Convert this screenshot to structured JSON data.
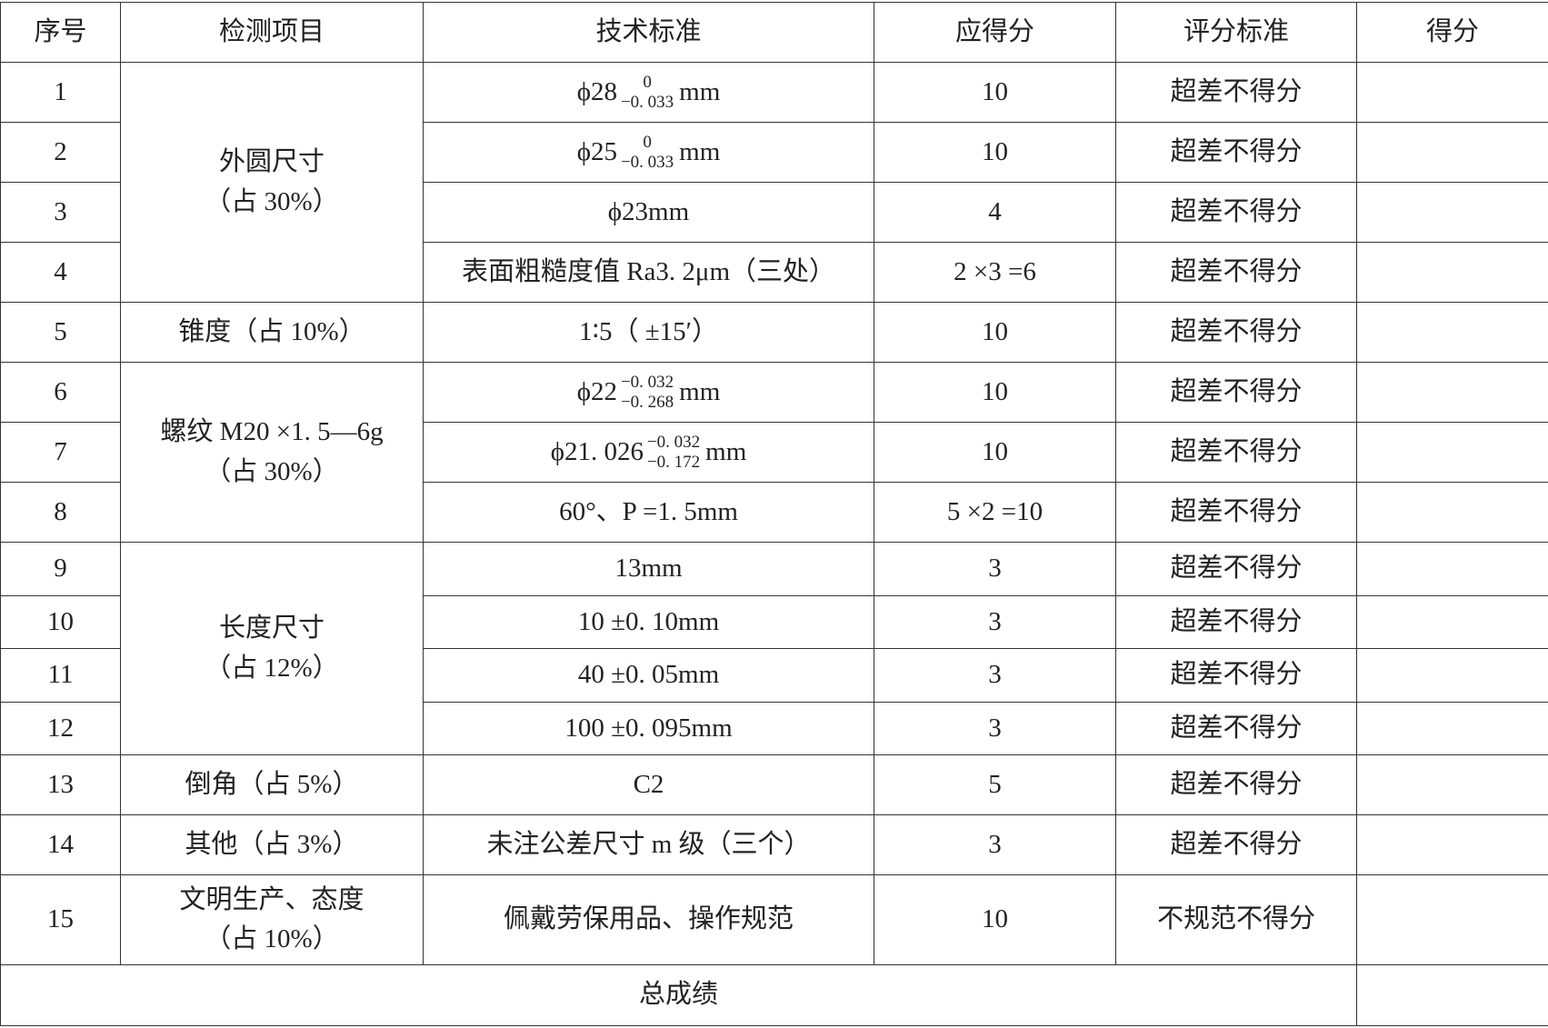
{
  "headers": [
    "序号",
    "检测项目",
    "技术标准",
    "应得分",
    "评分标准",
    "得分"
  ],
  "rows": [
    {
      "no": "1",
      "item": {
        "title": "外圆尺寸",
        "note": "（占 30%）",
        "span": 4
      },
      "tech": {
        "base": "ϕ28",
        "upper": "0",
        "lower": "−0. 033",
        "unit": "mm"
      },
      "points": "10",
      "criteria": "超差不得分",
      "score": ""
    },
    {
      "no": "2",
      "tech": {
        "base": "ϕ25",
        "upper": "0",
        "lower": "−0. 033",
        "unit": "mm"
      },
      "points": "10",
      "criteria": "超差不得分",
      "score": ""
    },
    {
      "no": "3",
      "tech": {
        "text": "ϕ23mm"
      },
      "points": "4",
      "criteria": "超差不得分",
      "score": ""
    },
    {
      "no": "4",
      "tech": {
        "text": "表面粗糙度值 Ra3. 2μm（三处）"
      },
      "points": "2 ×3 =6",
      "criteria": "超差不得分",
      "score": ""
    },
    {
      "no": "5",
      "item": {
        "title": "锥度（占 10%）",
        "span": 1
      },
      "tech": {
        "text": "1∶5（ ±15′）"
      },
      "points": "10",
      "criteria": "超差不得分",
      "score": ""
    },
    {
      "no": "6",
      "item": {
        "title": "螺纹 M20 ×1. 5—6g",
        "note": "（占 30%）",
        "span": 3
      },
      "tech": {
        "base": "ϕ22",
        "upper": "−0. 032",
        "lower": "−0. 268",
        "unit": "mm"
      },
      "points": "10",
      "criteria": "超差不得分",
      "score": ""
    },
    {
      "no": "7",
      "tech": {
        "base": "ϕ21. 026",
        "upper": "−0. 032",
        "lower": "−0. 172",
        "unit": "mm"
      },
      "points": "10",
      "criteria": "超差不得分",
      "score": ""
    },
    {
      "no": "8",
      "tech": {
        "text": "60°、P =1. 5mm"
      },
      "points": "5 ×2 =10",
      "criteria": "超差不得分",
      "score": ""
    },
    {
      "no": "9",
      "item": {
        "title": "长度尺寸",
        "note": "（占 12%）",
        "span": 4
      },
      "tech": {
        "text": "13mm"
      },
      "points": "3",
      "criteria": "超差不得分",
      "score": ""
    },
    {
      "no": "10",
      "tech": {
        "text": "10 ±0. 10mm"
      },
      "points": "3",
      "criteria": "超差不得分",
      "score": ""
    },
    {
      "no": "11",
      "tech": {
        "text": "40 ±0. 05mm"
      },
      "points": "3",
      "criteria": "超差不得分",
      "score": ""
    },
    {
      "no": "12",
      "tech": {
        "text": "100 ±0. 095mm"
      },
      "points": "3",
      "criteria": "超差不得分",
      "score": ""
    },
    {
      "no": "13",
      "item": {
        "title": "倒角（占 5%）",
        "span": 1
      },
      "tech": {
        "text": "C2"
      },
      "points": "5",
      "criteria": "超差不得分",
      "score": ""
    },
    {
      "no": "14",
      "item": {
        "title": "其他（占 3%）",
        "span": 1
      },
      "tech": {
        "text": "未注公差尺寸 m 级（三个）"
      },
      "points": "3",
      "criteria": "超差不得分",
      "score": ""
    },
    {
      "no": "15",
      "item": {
        "title": "文明生产、态度",
        "note": "（占 10%）",
        "span": 1
      },
      "tech": {
        "text": "佩戴劳保用品、操作规范"
      },
      "points": "10",
      "criteria": "不规范不得分",
      "score": ""
    }
  ],
  "total": {
    "label": "总成绩",
    "score": ""
  }
}
